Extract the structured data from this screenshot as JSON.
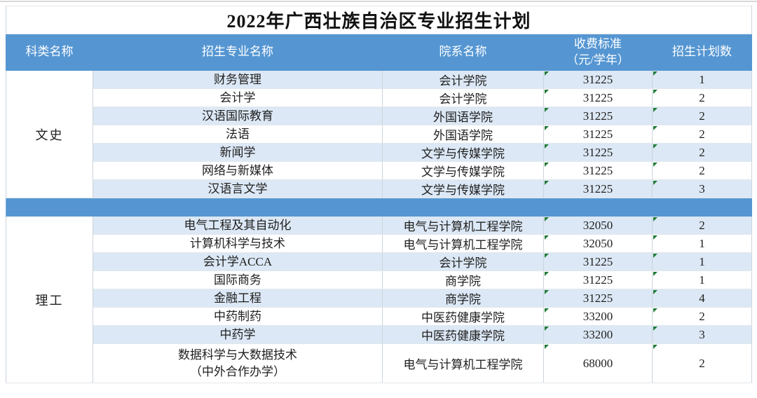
{
  "title": "2022年广西壮族自治区专业招生计划",
  "table": {
    "columns": [
      "科类名称",
      "招生专业名称",
      "院系名称",
      "收费标准\n（元/学年）",
      "招生计划数"
    ],
    "groups": [
      {
        "category": "文史",
        "rows": [
          {
            "major": "财务管理",
            "department": "会计学院",
            "fee": "31225",
            "plan": "1"
          },
          {
            "major": "会计学",
            "department": "会计学院",
            "fee": "31225",
            "plan": "2"
          },
          {
            "major": "汉语国际教育",
            "department": "外国语学院",
            "fee": "31225",
            "plan": "2"
          },
          {
            "major": "法语",
            "department": "外国语学院",
            "fee": "31225",
            "plan": "2"
          },
          {
            "major": "新闻学",
            "department": "文学与传媒学院",
            "fee": "31225",
            "plan": "2"
          },
          {
            "major": "网络与新媒体",
            "department": "文学与传媒学院",
            "fee": "31225",
            "plan": "2"
          },
          {
            "major": "汉语言文学",
            "department": "文学与传媒学院",
            "fee": "31225",
            "plan": "3"
          }
        ]
      },
      {
        "category": "理工",
        "rows": [
          {
            "major": "电气工程及其自动化",
            "department": "电气与计算机工程学院",
            "fee": "32050",
            "plan": "2"
          },
          {
            "major": "计算机科学与技术",
            "department": "电气与计算机工程学院",
            "fee": "32050",
            "plan": "1"
          },
          {
            "major": "会计学ACCA",
            "department": "会计学院",
            "fee": "31225",
            "plan": "1"
          },
          {
            "major": "国际商务",
            "department": "商学院",
            "fee": "31225",
            "plan": "1"
          },
          {
            "major": "金融工程",
            "department": "商学院",
            "fee": "31225",
            "plan": "4"
          },
          {
            "major": "中药制药",
            "department": "中医药健康学院",
            "fee": "33200",
            "plan": "2"
          },
          {
            "major": "中药学",
            "department": "中医药健康学院",
            "fee": "33200",
            "plan": "3"
          },
          {
            "major": "数据科学与大数据技术\n（中外合作办学）",
            "department": "电气与计算机工程学院",
            "fee": "68000",
            "plan": "2"
          }
        ]
      }
    ]
  },
  "colors": {
    "header_blue": "#5596d2",
    "stripe_blue": "#dce8f5",
    "marker_green": "#1e7a34",
    "outer_border": "#c6cbd0"
  }
}
